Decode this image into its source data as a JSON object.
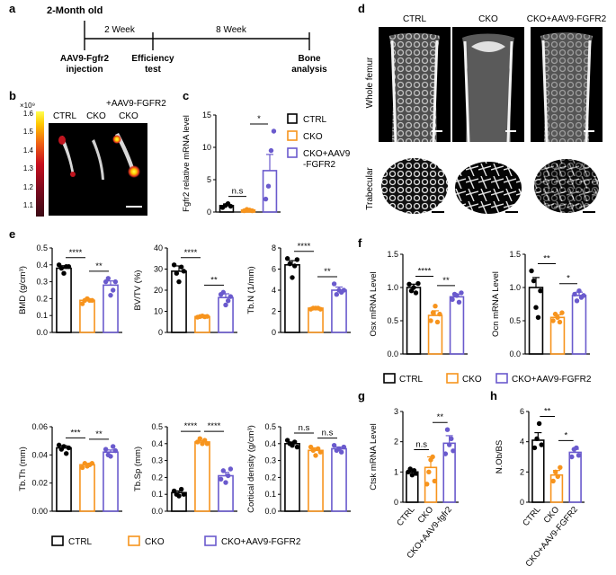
{
  "colors": {
    "ctrl": "#000000",
    "cko": "#F7941D",
    "aav": "#6A5ACD",
    "text": "#000000",
    "heat_gradient": [
      "#3a0a14",
      "#7a0a1e",
      "#c80f1e",
      "#f06414",
      "#ffc800",
      "#ffff50"
    ],
    "micro_ct_background": "#000000"
  },
  "panel_letters": [
    "a",
    "b",
    "c",
    "d",
    "e",
    "f",
    "g",
    "h"
  ],
  "legend_labels": [
    "CTRL",
    "CKO",
    "CKO+AAV9-FGFR2"
  ],
  "timeline": {
    "top_label": "2-Month old",
    "intervals": [
      "2 Week",
      "8 Week"
    ],
    "events": [
      {
        "line1": "AAV9-Fgfr2",
        "line2": "injection"
      },
      {
        "line1": "Efficiency",
        "line2": "test"
      },
      {
        "line1": "Bone",
        "line2": "analysis"
      }
    ]
  },
  "panel_b": {
    "top_label": "+AAV9-FGFR2",
    "group_labels": [
      "CTRL",
      "CKO",
      "CKO"
    ],
    "colorbar_exponent": "×10⁹",
    "colorbar_ticks": [
      "1.6",
      "1.5",
      "1.4",
      "1.3",
      "1.2",
      "1.1"
    ]
  },
  "panel_c_legend": [
    "CTRL",
    "CKO",
    "CKO+AAV9",
    "-FGFR2"
  ],
  "panel_d": {
    "col_labels": [
      "CTRL",
      "CKO",
      "CKO+AAV9-FGFR2"
    ],
    "row_labels": [
      "Whole femur",
      "Trabecular"
    ]
  },
  "chart_data": [
    {
      "id": "c",
      "type": "bar",
      "ylabel": "Fgfr2 relative mRNA level",
      "ylim": [
        0,
        15
      ],
      "yticks": [
        "0",
        "5",
        "10",
        "15"
      ],
      "categories": [
        "CTRL",
        "CKO",
        "CKO+AAV9-FGFR2"
      ],
      "values": [
        1.0,
        0.3,
        6.4
      ],
      "errors": [
        0.25,
        0.15,
        2.5
      ],
      "points": [
        [
          0.7,
          1.0,
          1.3,
          0.9
        ],
        [
          0.2,
          0.4,
          0.3,
          0.2
        ],
        [
          2.0,
          4.0,
          9.5,
          12.5
        ]
      ],
      "sig": [
        {
          "from": 0,
          "to": 1,
          "label": "n.s"
        },
        {
          "from": 1,
          "to": 2,
          "label": "*"
        }
      ]
    },
    {
      "id": "e1",
      "type": "bar",
      "ylabel": "BMD (g/cm³)",
      "ylim": [
        0,
        0.5
      ],
      "yticks": [
        "0.0",
        "0.1",
        "0.2",
        "0.3",
        "0.4",
        "0.5"
      ],
      "categories": [
        "CTRL",
        "CKO",
        "CKO+AAV9-FGFR2"
      ],
      "values": [
        0.38,
        0.19,
        0.28
      ],
      "errors": [
        0.015,
        0.008,
        0.025
      ],
      "points": [
        [
          0.4,
          0.38,
          0.35,
          0.39,
          0.39
        ],
        [
          0.17,
          0.19,
          0.2,
          0.19,
          0.19
        ],
        [
          0.3,
          0.32,
          0.22,
          0.25,
          0.3
        ]
      ],
      "sig": [
        {
          "from": 0,
          "to": 1,
          "label": "****"
        },
        {
          "from": 1,
          "to": 2,
          "label": "**"
        }
      ]
    },
    {
      "id": "e2",
      "type": "bar",
      "ylabel": "BV/TV (%)",
      "ylim": [
        0,
        40
      ],
      "yticks": [
        "0",
        "10",
        "20",
        "30",
        "40"
      ],
      "categories": [
        "CTRL",
        "CKO",
        "CKO+AAV9-FGFR2"
      ],
      "values": [
        29,
        7.5,
        16.5
      ],
      "errors": [
        2.5,
        0.4,
        1.8
      ],
      "points": [
        [
          32,
          28,
          24,
          31,
          29
        ],
        [
          7.2,
          7.5,
          7.8,
          7.4,
          7.6
        ],
        [
          18,
          19,
          13,
          15,
          17
        ]
      ],
      "sig": [
        {
          "from": 0,
          "to": 1,
          "label": "****"
        },
        {
          "from": 1,
          "to": 2,
          "label": "**"
        }
      ]
    },
    {
      "id": "e3",
      "type": "bar",
      "ylabel": "Tb.N (1/mm)",
      "ylim": [
        0,
        8
      ],
      "yticks": [
        "0",
        "2",
        "4",
        "6",
        "8"
      ],
      "categories": [
        "CTRL",
        "CKO",
        "CKO+AAV9-FGFR2"
      ],
      "values": [
        6.4,
        2.3,
        4.0
      ],
      "errors": [
        0.4,
        0.05,
        0.3
      ],
      "points": [
        [
          7.0,
          6.5,
          5.2,
          6.3,
          6.9
        ],
        [
          2.2,
          2.3,
          2.3,
          2.3,
          2.2
        ],
        [
          4.6,
          3.6,
          4.0,
          3.8,
          4.0
        ]
      ],
      "sig": [
        {
          "from": 0,
          "to": 1,
          "label": "****"
        },
        {
          "from": 1,
          "to": 2,
          "label": "**"
        }
      ]
    },
    {
      "id": "e4",
      "type": "bar",
      "ylabel": "Tb.Th (mm)",
      "ylim": [
        0,
        0.06
      ],
      "yticks": [
        "0.00",
        "0.02",
        "0.04",
        "0.06"
      ],
      "categories": [
        "CTRL",
        "CKO",
        "CKO+AAV9-FGFR2"
      ],
      "values": [
        0.045,
        0.033,
        0.042
      ],
      "errors": [
        0.0015,
        0.001,
        0.0015
      ],
      "points": [
        [
          0.047,
          0.044,
          0.046,
          0.041,
          0.045
        ],
        [
          0.031,
          0.034,
          0.032,
          0.033,
          0.034
        ],
        [
          0.044,
          0.04,
          0.039,
          0.046,
          0.043
        ]
      ],
      "sig": [
        {
          "from": 0,
          "to": 1,
          "label": "***"
        },
        {
          "from": 1,
          "to": 2,
          "label": "**"
        }
      ]
    },
    {
      "id": "e5",
      "type": "bar",
      "ylabel": "Tb.Sp (mm)",
      "ylim": [
        0,
        0.5
      ],
      "yticks": [
        "0.0",
        "0.1",
        "0.2",
        "0.3",
        "0.4",
        "0.5"
      ],
      "categories": [
        "CTRL",
        "CKO",
        "CKO+AAV9-FGFR2"
      ],
      "values": [
        0.11,
        0.41,
        0.21
      ],
      "errors": [
        0.01,
        0.008,
        0.02
      ],
      "points": [
        [
          0.12,
          0.1,
          0.09,
          0.13,
          0.1
        ],
        [
          0.41,
          0.43,
          0.4,
          0.42,
          0.4
        ],
        [
          0.19,
          0.24,
          0.17,
          0.21,
          0.25
        ]
      ],
      "sig": [
        {
          "from": 0,
          "to": 1,
          "label": "****"
        },
        {
          "from": 1,
          "to": 2,
          "label": "****"
        }
      ]
    },
    {
      "id": "e6",
      "type": "bar",
      "ylabel": "Cortical density (g/cm³)",
      "ylim": [
        0,
        0.5
      ],
      "yticks": [
        "0.0",
        "0.1",
        "0.2",
        "0.3",
        "0.4",
        "0.5"
      ],
      "categories": [
        "CTRL",
        "CKO",
        "CKO+AAV9-FGFR2"
      ],
      "values": [
        0.4,
        0.36,
        0.37
      ],
      "errors": [
        0.01,
        0.015,
        0.01
      ],
      "points": [
        [
          0.42,
          0.4,
          0.39,
          0.41,
          0.38
        ],
        [
          0.38,
          0.36,
          0.33,
          0.37,
          0.35
        ],
        [
          0.39,
          0.36,
          0.37,
          0.35,
          0.38
        ]
      ],
      "sig": [
        {
          "from": 0,
          "to": 1,
          "label": "n.s"
        },
        {
          "from": 1,
          "to": 2,
          "label": "n.s"
        }
      ]
    },
    {
      "id": "f1",
      "type": "bar",
      "ylabel": "Osx mRNA Level",
      "ylim": [
        0,
        1.5
      ],
      "yticks": [
        "0.0",
        "0.5",
        "1.0",
        "1.5"
      ],
      "categories": [
        "CTRL",
        "CKO",
        "CKO+AAV9-FGFR2"
      ],
      "values": [
        1.0,
        0.58,
        0.86
      ],
      "errors": [
        0.05,
        0.07,
        0.04
      ],
      "points": [
        [
          1.05,
          0.95,
          1.0,
          0.92,
          1.06
        ],
        [
          0.5,
          0.62,
          0.72,
          0.48,
          0.6
        ],
        [
          0.82,
          0.9,
          0.88,
          0.78,
          0.92
        ]
      ],
      "sig": [
        {
          "from": 0,
          "to": 1,
          "label": "****"
        },
        {
          "from": 1,
          "to": 2,
          "label": "**"
        }
      ]
    },
    {
      "id": "f2",
      "type": "bar",
      "ylabel": "Ocn mRNA Level",
      "ylim": [
        0,
        1.5
      ],
      "yticks": [
        "0.0",
        "0.5",
        "1.0",
        "1.5"
      ],
      "categories": [
        "CTRL",
        "CKO",
        "CKO+AAV9-FGFR2"
      ],
      "values": [
        1.0,
        0.55,
        0.88
      ],
      "errors": [
        0.15,
        0.04,
        0.05
      ],
      "points": [
        [
          1.25,
          1.1,
          0.7,
          0.55,
          0.95
        ],
        [
          0.5,
          0.6,
          0.55,
          0.48,
          0.62
        ],
        [
          0.9,
          0.8,
          0.95,
          0.85,
          0.88
        ]
      ],
      "sig": [
        {
          "from": 0,
          "to": 1,
          "label": "**"
        },
        {
          "from": 1,
          "to": 2,
          "label": "*"
        }
      ]
    },
    {
      "id": "g",
      "type": "bar",
      "ylabel": "Ctsk mRNA Level",
      "ylim": [
        0,
        3
      ],
      "yticks": [
        "0",
        "1",
        "2",
        "3"
      ],
      "categories": [
        "CTRL",
        "CKO",
        "CKO+AAV9-fgfr2"
      ],
      "values": [
        1.0,
        1.15,
        1.95
      ],
      "errors": [
        0.05,
        0.35,
        0.25
      ],
      "points": [
        [
          1.0,
          1.1,
          0.9,
          1.05,
          0.95
        ],
        [
          0.6,
          1.0,
          1.4,
          1.5,
          0.7
        ],
        [
          1.6,
          2.4,
          1.9,
          2.1,
          1.7
        ]
      ],
      "sig": [
        {
          "from": 0,
          "to": 1,
          "label": "n.s"
        },
        {
          "from": 1,
          "to": 2,
          "label": "**"
        }
      ]
    },
    {
      "id": "h",
      "type": "bar",
      "ylabel": "N.Ob/BS",
      "ylim": [
        0,
        6
      ],
      "yticks": [
        "0",
        "2",
        "4",
        "6"
      ],
      "categories": [
        "CTRL",
        "CKO",
        "CKO+AAV9-FGFR2"
      ],
      "values": [
        4.1,
        1.8,
        3.3
      ],
      "errors": [
        0.5,
        0.3,
        0.2
      ],
      "points": [
        [
          3.6,
          4.2,
          5.2,
          3.8
        ],
        [
          1.4,
          2.0,
          1.7,
          2.3
        ],
        [
          3.0,
          3.5,
          3.6,
          3.1
        ]
      ],
      "sig": [
        {
          "from": 0,
          "to": 1,
          "label": "**"
        },
        {
          "from": 1,
          "to": 2,
          "label": "*"
        }
      ]
    }
  ]
}
